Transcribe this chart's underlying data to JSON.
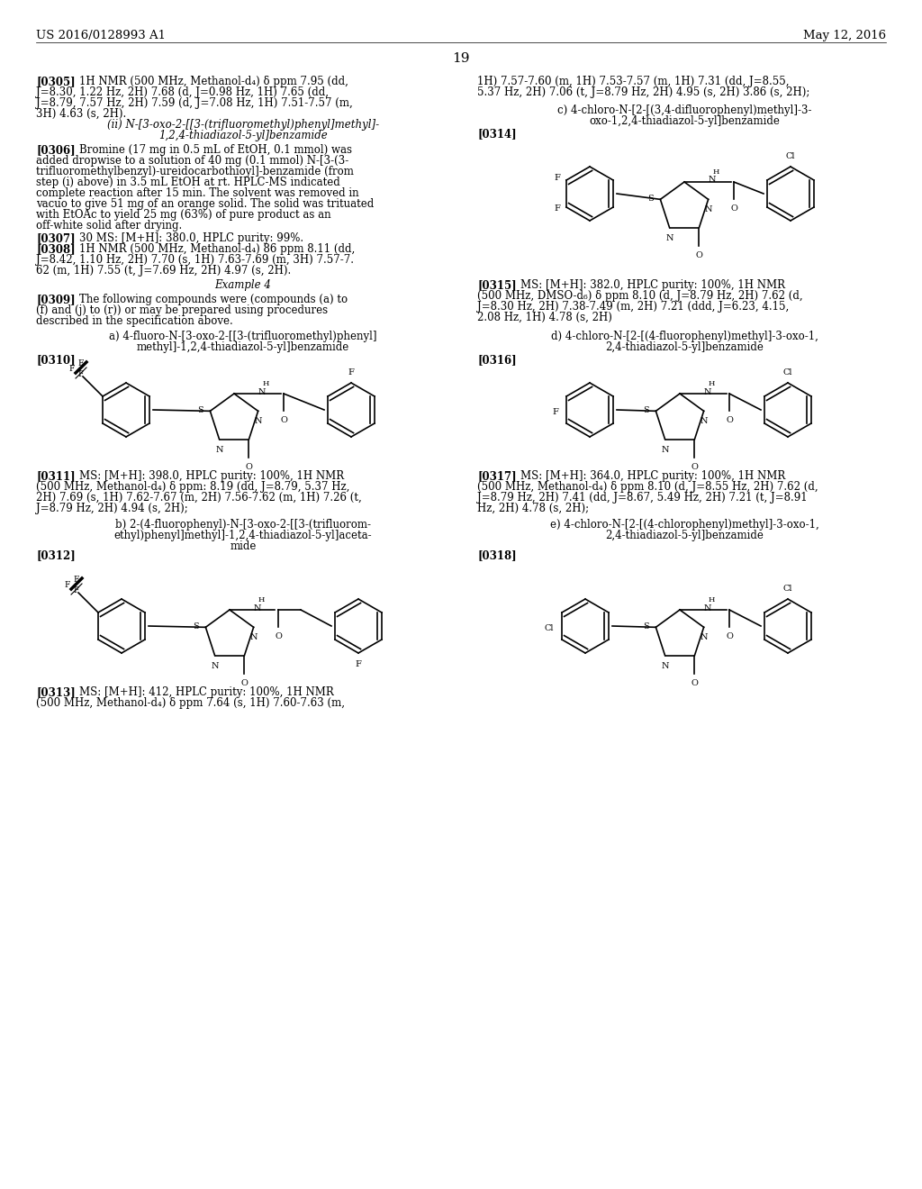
{
  "background_color": "#ffffff",
  "header_left": "US 2016/0128993 A1",
  "header_right": "May 12, 2016",
  "page_number": "19"
}
